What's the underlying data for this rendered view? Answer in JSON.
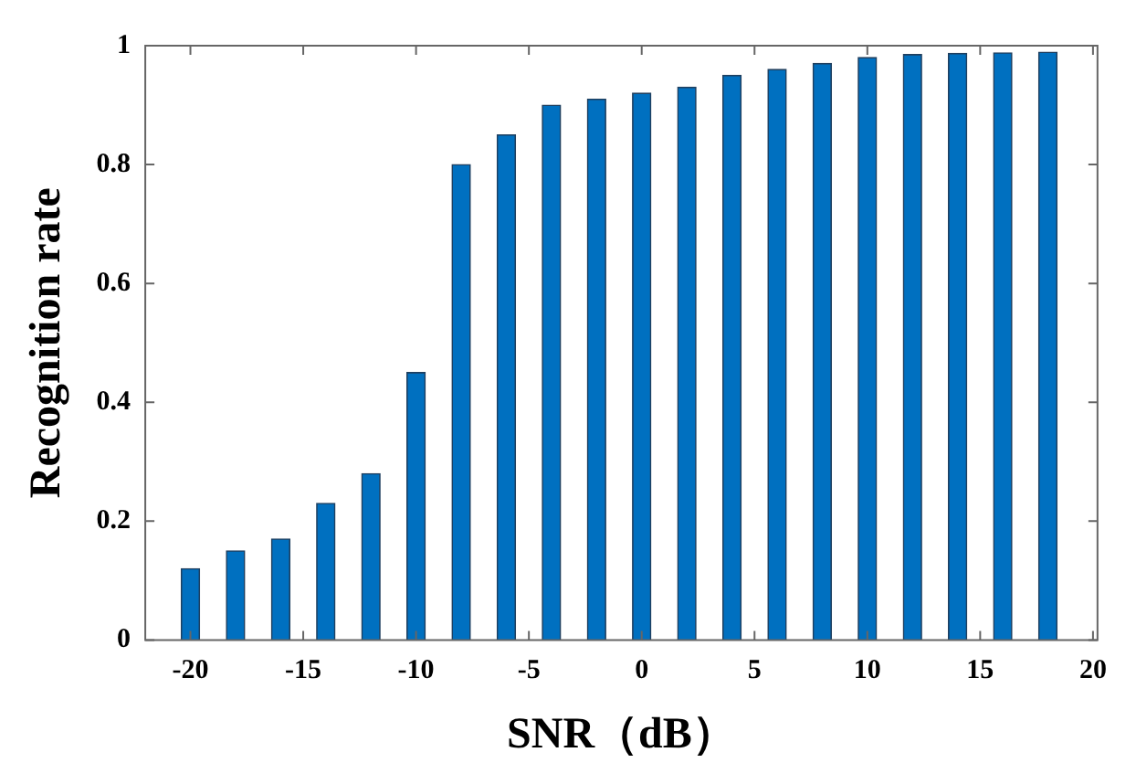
{
  "chart_data": {
    "type": "bar",
    "xlabel": "SNR（dB）",
    "ylabel": "Recognition rate",
    "x": [
      -20,
      -18,
      -16,
      -14,
      -12,
      -10,
      -8,
      -6,
      -4,
      -2,
      0,
      2,
      4,
      6,
      8,
      10,
      12,
      14,
      16,
      18
    ],
    "values": [
      0.12,
      0.15,
      0.17,
      0.23,
      0.28,
      0.45,
      0.8,
      0.85,
      0.9,
      0.91,
      0.92,
      0.93,
      0.95,
      0.96,
      0.97,
      0.98,
      0.985,
      0.987,
      0.988,
      0.989
    ],
    "color": "#0070c0",
    "xlim": [
      -22,
      20.2
    ],
    "xticks": [
      -20,
      -15,
      -10,
      -5,
      0,
      5,
      10,
      15,
      20
    ],
    "ylim": [
      0,
      1
    ],
    "yticks": [
      0,
      0.2,
      0.4,
      0.6,
      0.8,
      1
    ],
    "grid": false,
    "legend": false
  }
}
